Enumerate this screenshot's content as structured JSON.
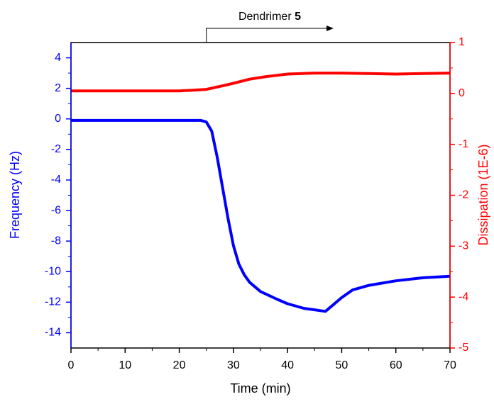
{
  "chart_data": {
    "type": "line",
    "xlabel": "Time (min)",
    "ylabel": "Frequency (Hz)",
    "y2label": "Dissipation (1E-6)",
    "annotation": {
      "text": "Dendrimer",
      "bold": "5",
      "x": 25
    },
    "xlim": [
      0,
      70
    ],
    "xticks": [
      0,
      10,
      20,
      30,
      40,
      50,
      60,
      70
    ],
    "ylim": [
      -15,
      5
    ],
    "yticks": [
      -14,
      -12,
      -10,
      -8,
      -6,
      -4,
      -2,
      0,
      2,
      4
    ],
    "y2lim": [
      -5,
      1
    ],
    "y2ticks": [
      -5,
      -4,
      -3,
      -2,
      -1,
      0,
      1
    ],
    "y_color": "#0000ff",
    "y2_color": "#ff0000",
    "series": [
      {
        "color": "#0000ff",
        "axis": "y",
        "x": [
          0,
          5,
          10,
          15,
          20,
          24,
          25,
          26,
          27,
          28,
          29,
          30,
          31,
          32,
          33,
          35,
          38,
          40,
          43,
          45,
          47,
          48,
          50,
          52,
          55,
          60,
          65,
          70
        ],
        "values": [
          -0.1,
          -0.1,
          -0.1,
          -0.1,
          -0.1,
          -0.1,
          -0.2,
          -0.8,
          -2.5,
          -4.5,
          -6.5,
          -8.3,
          -9.5,
          -10.2,
          -10.7,
          -11.3,
          -11.8,
          -12.1,
          -12.4,
          -12.5,
          -12.6,
          -12.3,
          -11.7,
          -11.2,
          -10.9,
          -10.6,
          -10.4,
          -10.3
        ]
      },
      {
        "color": "#ff0000",
        "axis": "y2",
        "x": [
          0,
          5,
          10,
          15,
          20,
          22,
          25,
          28,
          30,
          33,
          36,
          40,
          45,
          50,
          55,
          60,
          65,
          70
        ],
        "values": [
          0.05,
          0.05,
          0.05,
          0.05,
          0.05,
          0.06,
          0.08,
          0.15,
          0.2,
          0.28,
          0.33,
          0.38,
          0.4,
          0.4,
          0.39,
          0.38,
          0.39,
          0.4
        ]
      }
    ]
  }
}
